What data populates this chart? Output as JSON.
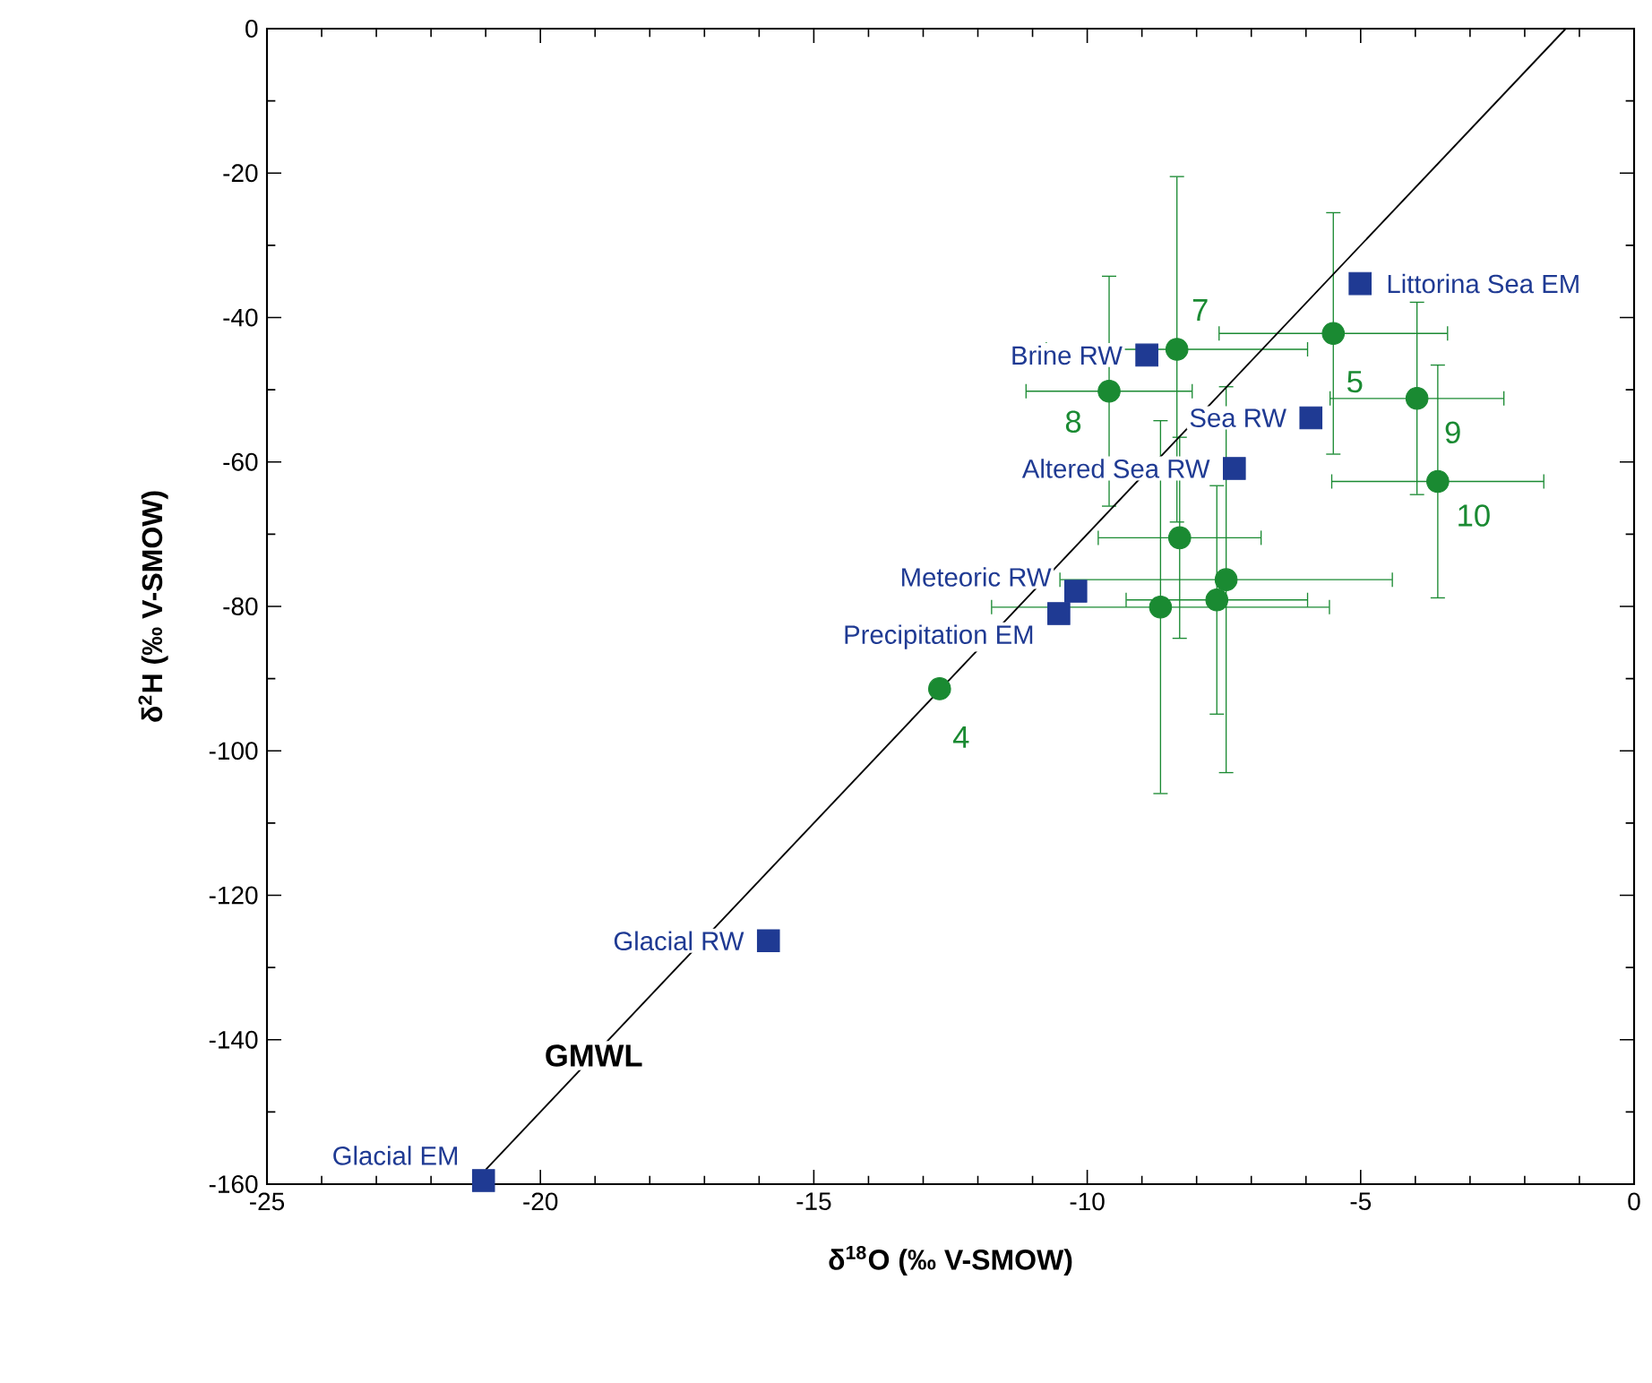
{
  "chart_data": {
    "type": "scatter",
    "xlabel": "δ$^{18}$O (‰ V-SMOW)",
    "ylabel": "δ$^{2}$H (‰ V-SMOW)",
    "xlim": [
      -25,
      0
    ],
    "ylim": [
      -160,
      0
    ],
    "xticks": [
      -25,
      -20,
      -15,
      -10,
      -5,
      0
    ],
    "yticks": [
      -160,
      -140,
      -120,
      -100,
      -80,
      -60,
      -40,
      -20,
      0
    ],
    "series": [
      {
        "name": "7",
        "color": "#1a8a32",
        "marker": "circle",
        "x": [
          -8.36
        ],
        "values": [
          -44.4
        ],
        "errors": [
          24
        ],
        "xerrors": [
          2.4
        ]
      },
      {
        "name": "5",
        "color": "#1a8a32",
        "marker": "circle",
        "x": [
          -5.5
        ],
        "values": [
          -42.2
        ],
        "errors": [
          16.8
        ],
        "xerrors": [
          2.1
        ]
      },
      {
        "name": "8",
        "color": "#1a8a32",
        "marker": "circle",
        "x": [
          -9.6
        ],
        "values": [
          -50.2
        ],
        "errors": [
          16
        ],
        "xerrors": [
          1.53
        ]
      },
      {
        "name": "9",
        "color": "#1a8a32",
        "marker": "circle",
        "x": [
          -3.97
        ],
        "values": [
          -51.2
        ],
        "errors": [
          13.4
        ],
        "xerrors": [
          1.6
        ]
      },
      {
        "name": "10",
        "color": "#1a8a32",
        "marker": "circle",
        "x": [
          -3.59
        ],
        "values": [
          -62.7
        ],
        "errors": [
          16.2
        ],
        "xerrors": [
          1.95
        ]
      },
      {
        "name": "4",
        "color": "#1a8a32",
        "marker": "circle",
        "x": [
          -12.7
        ],
        "values": [
          -91.4
        ]
      },
      {
        "color": "#1a8a32",
        "marker": "circle",
        "x": [
          -8.31,
          -7.46,
          -7.63,
          -8.66
        ],
        "values": [
          -70.5,
          -76.3,
          -79.1,
          -80.1
        ],
        "errors": [
          14,
          26.8,
          15.9,
          25.9
        ],
        "xerrors": [
          1.5,
          3.05,
          1.67,
          3.1
        ]
      },
      {
        "name": "Littorina Sea EM",
        "color": "#1f3a93",
        "marker": "square",
        "x": [
          -5.01
        ],
        "values": [
          -35.3
        ]
      },
      {
        "name": "Brine RW",
        "color": "#1f3a93",
        "marker": "square",
        "x": [
          -8.91
        ],
        "values": [
          -45.2
        ]
      },
      {
        "name": "Sea RW",
        "color": "#1f3a93",
        "marker": "square",
        "x": [
          -5.91
        ],
        "values": [
          -53.9
        ]
      },
      {
        "name": "Altered Sea RW",
        "color": "#1f3a93",
        "marker": "square",
        "x": [
          -7.31
        ],
        "values": [
          -60.9
        ]
      },
      {
        "name": "Meteoric RW",
        "color": "#1f3a93",
        "marker": "square",
        "x": [
          -10.21
        ],
        "values": [
          -77.9
        ]
      },
      {
        "name": "Precipitation EM",
        "color": "#1f3a93",
        "marker": "square",
        "x": [
          -10.52
        ],
        "values": [
          -81.0
        ]
      },
      {
        "name": "Glacial RW",
        "color": "#1f3a93",
        "marker": "square",
        "x": [
          -15.83
        ],
        "values": [
          -126.3
        ]
      },
      {
        "name": "Glacial EM",
        "color": "#1f3a93",
        "marker": "square",
        "x": [
          -21.04
        ],
        "values": [
          -159.5
        ]
      },
      {
        "type": "line",
        "name": "GMWL",
        "color": "#000000",
        "marker": "none",
        "x": [
          -21,
          -1.25
        ],
        "values": [
          -158,
          0
        ]
      }
    ]
  }
}
